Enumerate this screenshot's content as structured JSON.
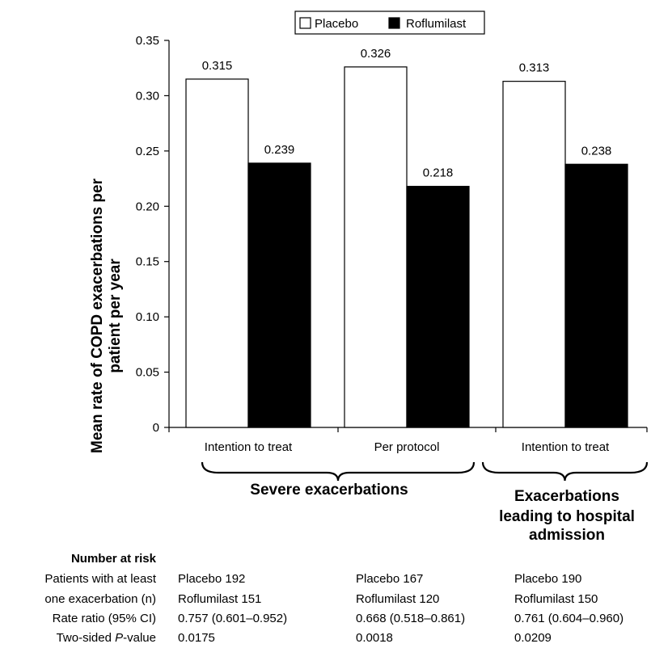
{
  "chart_data": {
    "type": "bar",
    "ylabel_lines": [
      "Mean rate of COPD exacerbations per",
      "patient per year"
    ],
    "ylim": [
      0,
      0.35
    ],
    "yticks": [
      "0",
      "0.05",
      "0.10",
      "0.15",
      "0.20",
      "0.25",
      "0.30",
      "0.35"
    ],
    "ytick_values": [
      0,
      0.05,
      0.1,
      0.15,
      0.2,
      0.25,
      0.3,
      0.35
    ],
    "categories": [
      "Intention to treat",
      "Per protocol",
      "Intention to treat"
    ],
    "series": [
      {
        "name": "Placebo",
        "color": "#ffffff",
        "values": [
          0.315,
          0.326,
          0.313
        ],
        "labels": [
          "0.315",
          "0.326",
          "0.313"
        ]
      },
      {
        "name": "Roflumilast",
        "color": "#000000",
        "values": [
          0.239,
          0.218,
          0.238
        ],
        "labels": [
          "0.239",
          "0.218",
          "0.238"
        ]
      }
    ],
    "groups": [
      {
        "lines": [
          "Severe exacerbations"
        ]
      },
      {
        "lines": [
          "Exacerbations",
          "leading to hospital",
          "admission"
        ]
      }
    ],
    "legend": "top-center"
  },
  "table": {
    "title": "Number at risk",
    "row_labels": [
      "Patients with at least",
      "one exacerbation (n)",
      "Rate ratio (95% CI)",
      "Two-sided P-value"
    ],
    "columns": [
      {
        "placebo": "Placebo 192",
        "roflumilast": "Roflumilast 151",
        "rate_ratio": "0.757 (0.601–0.952)",
        "p_value": "0.0175"
      },
      {
        "placebo": "Placebo 167",
        "roflumilast": "Roflumilast 120",
        "rate_ratio": "0.668 (0.518–0.861)",
        "p_value": "0.0018"
      },
      {
        "placebo": "Placebo 190",
        "roflumilast": "Roflumilast 150",
        "rate_ratio": "0.761 (0.604–0.960)",
        "p_value": "0.0209"
      }
    ]
  }
}
